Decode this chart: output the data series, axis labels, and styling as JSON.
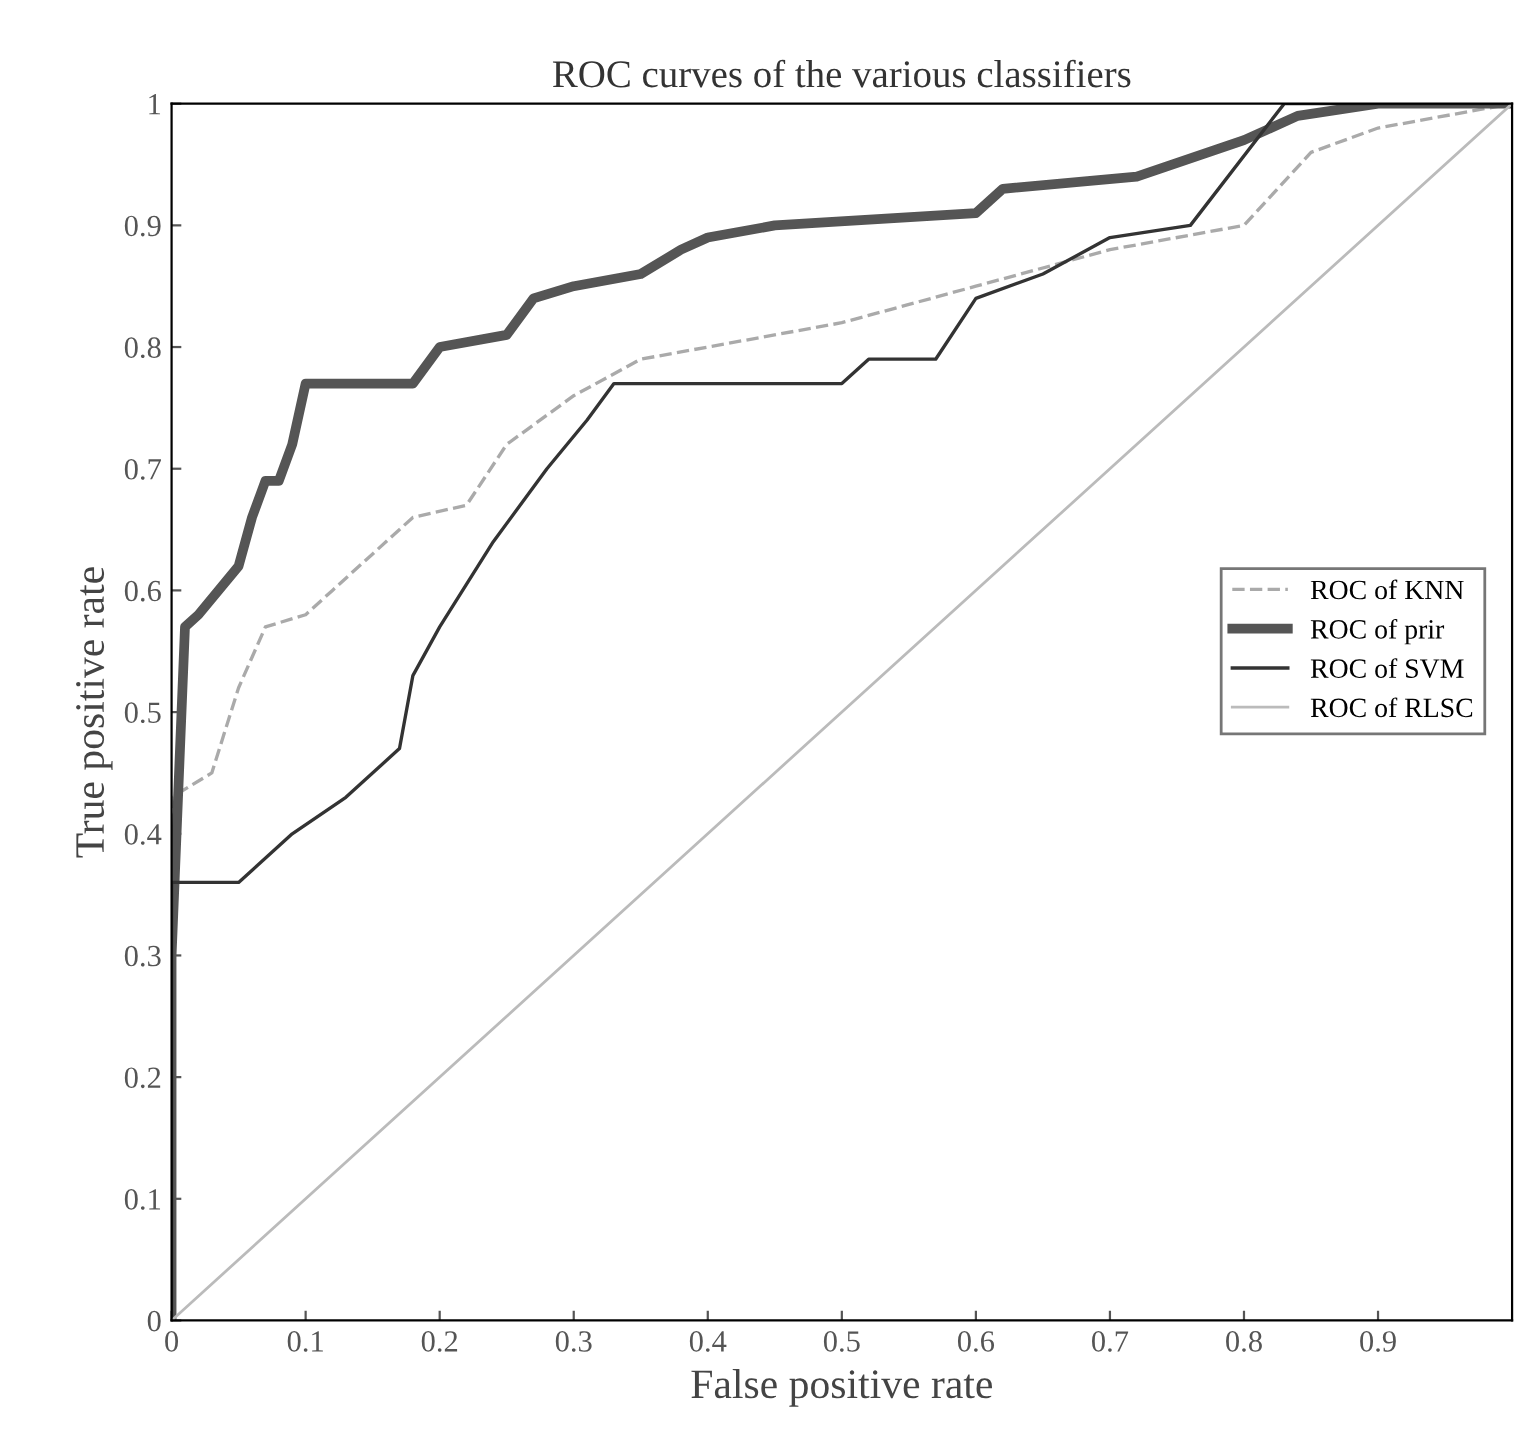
{
  "chart_data": {
    "type": "line",
    "title": "ROC curves of the various classifiers",
    "xlabel": "False positive rate",
    "ylabel": "True positive rate",
    "xlim": [
      0,
      1
    ],
    "ylim": [
      0,
      1
    ],
    "xticks": [
      0,
      0.1,
      0.2,
      0.3,
      0.4,
      0.5,
      0.6,
      0.7,
      0.8,
      0.9
    ],
    "yticks": [
      0,
      0.1,
      0.2,
      0.3,
      0.4,
      0.5,
      0.6,
      0.7,
      0.8,
      0.9,
      1
    ],
    "grid": false,
    "legend": "right",
    "marker": "none",
    "series": [
      {
        "name": "ROC of KNN",
        "color": "#aaaaaa",
        "line_style": "dashed",
        "x": [
          0,
          0,
          0.03,
          0.05,
          0.07,
          0.1,
          0.12,
          0.15,
          0.18,
          0.22,
          0.25,
          0.3,
          0.35,
          0.4,
          0.5,
          0.6,
          0.7,
          0.8,
          0.85,
          0.9,
          1
        ],
        "values": [
          0,
          0.43,
          0.45,
          0.52,
          0.57,
          0.58,
          0.6,
          0.63,
          0.66,
          0.67,
          0.72,
          0.76,
          0.79,
          0.8,
          0.82,
          0.85,
          0.88,
          0.9,
          0.96,
          0.98,
          1
        ]
      },
      {
        "name": "ROC of prir",
        "color": "#555555",
        "line_style": "solid",
        "x": [
          0,
          0,
          0.01,
          0.02,
          0.05,
          0.06,
          0.07,
          0.08,
          0.09,
          0.1,
          0.18,
          0.2,
          0.25,
          0.27,
          0.3,
          0.35,
          0.38,
          0.4,
          0.45,
          0.6,
          0.62,
          0.72,
          0.8,
          0.84,
          0.9,
          1
        ],
        "values": [
          0,
          0.3,
          0.57,
          0.58,
          0.62,
          0.66,
          0.69,
          0.69,
          0.72,
          0.77,
          0.77,
          0.8,
          0.81,
          0.84,
          0.85,
          0.86,
          0.88,
          0.89,
          0.9,
          0.91,
          0.93,
          0.94,
          0.97,
          0.99,
          1,
          1
        ]
      },
      {
        "name": "ROC of SVM",
        "color": "#333333",
        "line_style": "solid",
        "x": [
          0,
          0,
          0.05,
          0.09,
          0.13,
          0.17,
          0.18,
          0.2,
          0.24,
          0.28,
          0.31,
          0.33,
          0.5,
          0.52,
          0.57,
          0.6,
          0.65,
          0.7,
          0.76,
          0.83,
          1
        ],
        "values": [
          0,
          0.36,
          0.36,
          0.4,
          0.43,
          0.47,
          0.53,
          0.57,
          0.64,
          0.7,
          0.74,
          0.77,
          0.77,
          0.79,
          0.79,
          0.84,
          0.86,
          0.89,
          0.9,
          1,
          1
        ]
      },
      {
        "name": "ROC of RLSC",
        "color": "#bbbbbb",
        "line_style": "solid",
        "x": [
          0,
          1
        ],
        "values": [
          0,
          1
        ]
      }
    ]
  }
}
